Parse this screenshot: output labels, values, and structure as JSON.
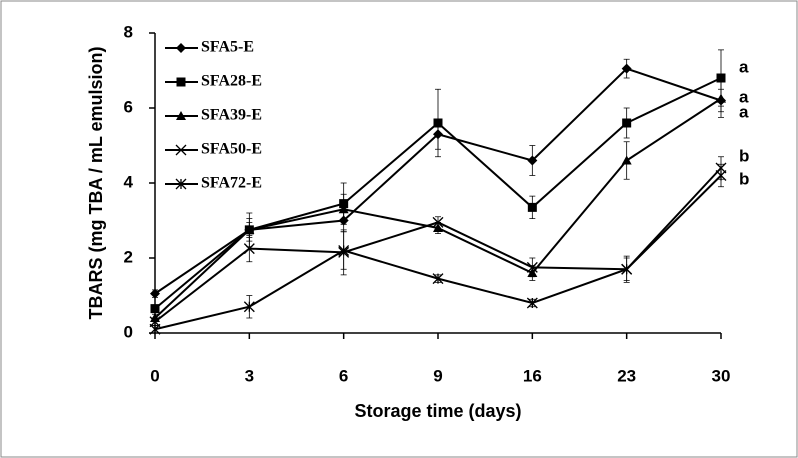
{
  "chart_data": {
    "type": "line",
    "x_label": "Storage time (days)",
    "y_label": "TBARS (mg TBA / mL emulsion)",
    "categories": [
      "0",
      "3",
      "6",
      "9",
      "16",
      "23",
      "30"
    ],
    "ylim": [
      0,
      8
    ],
    "yticks": [
      0,
      2,
      4,
      6,
      8
    ],
    "legend": "upper left",
    "series": [
      {
        "name": "SFA5-E",
        "color": "#000000",
        "marker": "diamond",
        "values": [
          1.05,
          2.75,
          3.0,
          5.3,
          4.6,
          7.05,
          6.2
        ],
        "errors": [
          0.1,
          0.2,
          0.3,
          0.4,
          0.4,
          0.25,
          0.3
        ]
      },
      {
        "name": "SFA28-E",
        "color": "#000000",
        "marker": "square",
        "values": [
          0.65,
          2.75,
          3.45,
          5.6,
          3.35,
          5.6,
          6.8
        ],
        "errors": [
          0.1,
          0.45,
          0.55,
          0.9,
          0.3,
          0.4,
          0.75
        ]
      },
      {
        "name": "SFA39-E",
        "color": "#000000",
        "marker": "triangle",
        "values": [
          0.4,
          2.75,
          3.3,
          2.8,
          1.6,
          4.6,
          6.25
        ],
        "errors": [
          0.1,
          0.3,
          0.4,
          0.15,
          0.2,
          0.5,
          0.5
        ]
      },
      {
        "name": "SFA50-E",
        "color": "#000000",
        "marker": "x",
        "values": [
          0.3,
          2.25,
          2.15,
          2.95,
          1.75,
          1.7,
          4.4
        ],
        "errors": [
          0.1,
          0.35,
          0.6,
          0.15,
          0.25,
          0.35,
          0.3
        ]
      },
      {
        "name": "SFA72-E",
        "color": "#000000",
        "marker": "asterisk",
        "values": [
          0.1,
          0.7,
          2.2,
          1.45,
          0.8,
          1.7,
          4.2
        ],
        "errors": [
          0.1,
          0.3,
          0.5,
          0.1,
          0.1,
          0.3,
          0.3
        ]
      }
    ],
    "annotations": [
      "a",
      "a",
      "a",
      "b",
      "b"
    ]
  }
}
